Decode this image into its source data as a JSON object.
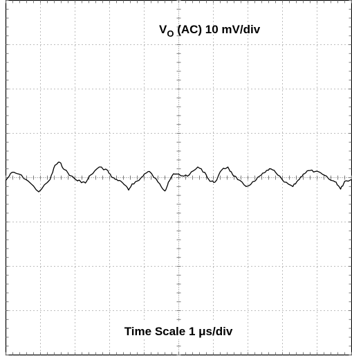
{
  "chart_data": {
    "type": "line",
    "title": "",
    "xlabel": "Time Scale 1 μs/div",
    "ylabel": "VO (AC) 10 mV/div",
    "ylabel_parts": {
      "main": "V",
      "sub": "O",
      "rest": " (AC) 10 mV/div"
    },
    "x_units": "μs",
    "y_units": "mV",
    "xlim": [
      -5,
      5
    ],
    "ylim": [
      -40,
      40
    ],
    "x_divisions": 10,
    "y_divisions": 8,
    "grid": true,
    "series": [
      {
        "name": "",
        "x": [
          -5.0,
          -4.82,
          -4.62,
          -4.35,
          -4.05,
          -3.72,
          -3.58,
          -3.45,
          -3.3,
          -3.12,
          -2.95,
          -2.85,
          -2.7,
          -2.55,
          -2.3,
          -2.05,
          -1.95,
          -1.8,
          -1.62,
          -1.45,
          -1.35,
          -1.15,
          -1.0,
          -0.85,
          -0.6,
          -0.4,
          -0.3,
          -0.18,
          -0.05,
          0.1,
          0.3,
          0.55,
          0.75,
          0.9,
          1.05,
          1.25,
          1.42,
          1.55,
          1.7,
          1.95,
          2.2,
          2.35,
          2.5,
          2.62,
          2.8,
          3.05,
          3.3,
          3.45,
          3.6,
          3.75,
          3.95,
          4.15,
          4.4,
          4.55,
          4.68,
          4.8,
          5.0
        ],
        "y": [
          -0.6,
          1.2,
          0.8,
          -0.8,
          -3.2,
          -0.4,
          2.8,
          3.5,
          1.8,
          0.4,
          -0.6,
          -0.8,
          -1.2,
          0.6,
          2.4,
          1.6,
          0.2,
          -0.4,
          -1.2,
          -2.8,
          -1.4,
          -0.6,
          0.8,
          1.4,
          -1.0,
          -3.0,
          -1.0,
          0.6,
          0.8,
          0.4,
          0.6,
          2.4,
          1.2,
          -0.8,
          -1.0,
          1.8,
          2.4,
          0.8,
          -0.4,
          -2.0,
          -0.8,
          0.4,
          1.2,
          2.0,
          1.2,
          -1.0,
          -2.0,
          -0.6,
          0.8,
          1.6,
          1.4,
          0.8,
          -0.6,
          -1.0,
          -2.6,
          -0.8,
          -0.4
        ]
      }
    ]
  },
  "colors": {
    "trace": "#000000",
    "grid": "#7a7a7a",
    "border": "#000000",
    "background": "#ffffff"
  }
}
